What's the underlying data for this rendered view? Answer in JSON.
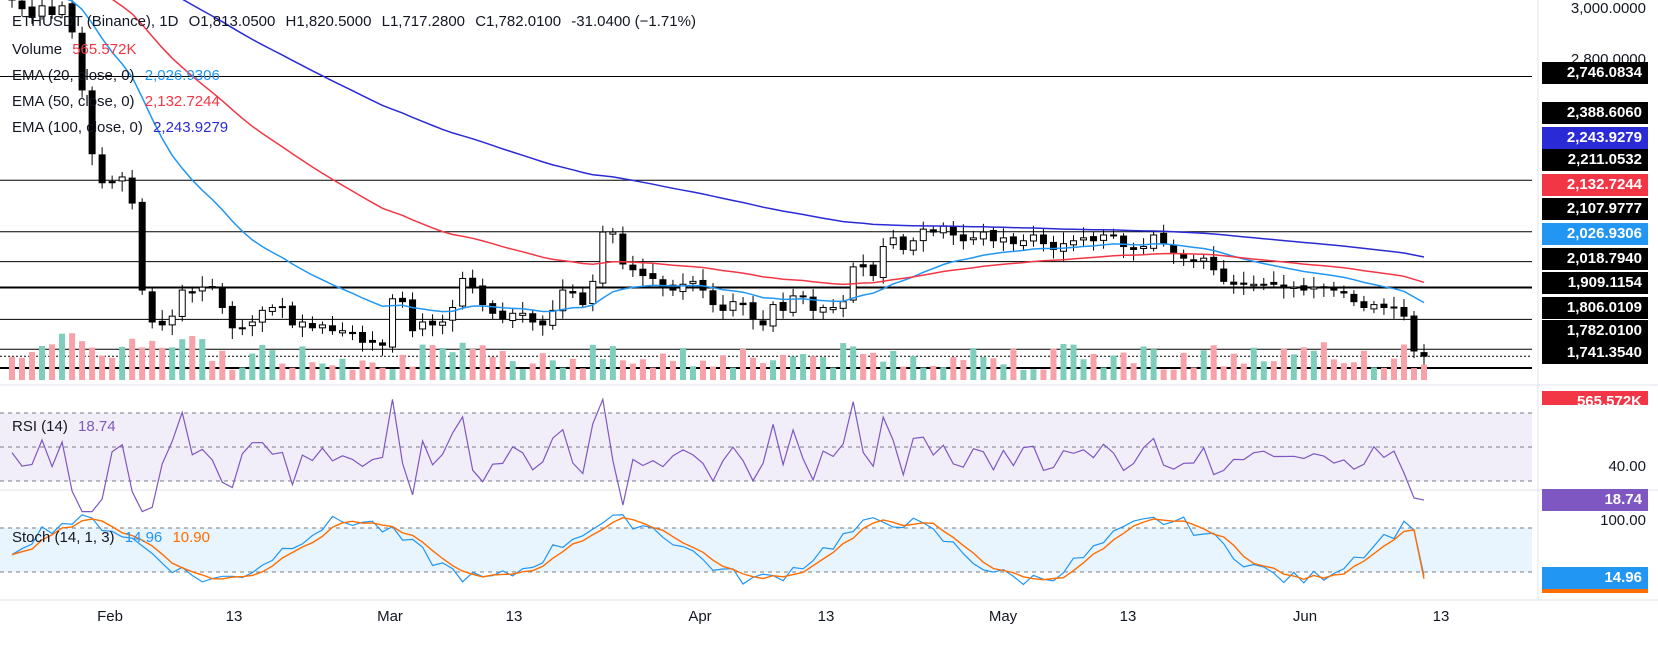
{
  "header": {
    "symbol": "ETHUSDT (Binance), 1D",
    "open": "O1,813.0500",
    "high": "H1,820.5000",
    "low": "L1,717.2800",
    "close": "C1,782.0100",
    "change": "-31.0400 (−1.71%)"
  },
  "legend": {
    "volume_label": "Volume",
    "volume_value": "565.572K",
    "ema20_label": "EMA (20, close, 0)",
    "ema20_value": "2,026.9306",
    "ema50_label": "EMA (50, close, 0)",
    "ema50_value": "2,132.7244",
    "ema100_label": "EMA (100, close, 0)",
    "ema100_value": "2,243.9279",
    "rsi_label": "RSI (14)",
    "rsi_value": "18.74",
    "stoch_label": "Stoch (14, 1, 3)",
    "stoch_k": "14.96",
    "stoch_d": "10.90"
  },
  "price_axis": {
    "top_label": "3,000.0000",
    "label_2800": "2,800.0000",
    "levels": [
      {
        "value": "2,746.0834",
        "color": "#000000"
      },
      {
        "value": "2,388.6060",
        "color": "#000000"
      },
      {
        "value": "2,243.9279",
        "color": "#2a2ad6"
      },
      {
        "value": "2,211.0532",
        "color": "#000000"
      },
      {
        "value": "2,132.7244",
        "color": "#f23645"
      },
      {
        "value": "2,107.9777",
        "color": "#000000"
      },
      {
        "value": "2,026.9306",
        "color": "#2196f3"
      },
      {
        "value": "2,018.7940",
        "color": "#000000"
      },
      {
        "value": "1,909.1154",
        "color": "#000000"
      },
      {
        "value": "1,806.0109",
        "color": "#000000"
      },
      {
        "value": "1,782.0100",
        "color": "#000000"
      },
      {
        "value": "1,741.3540",
        "color": "#000000"
      }
    ],
    "volume_badge": "565.572K",
    "rsi_axis_label": "40.00",
    "rsi_badge": "18.74",
    "stoch_axis_label": "100.00",
    "stoch_badge": "14.96"
  },
  "x_axis": {
    "labels": [
      "Feb",
      "13",
      "Mar",
      "13",
      "Apr",
      "13",
      "May",
      "13",
      "Jun",
      "13"
    ]
  },
  "colors": {
    "up": "#ffffff",
    "down": "#000000",
    "ema20": "#2196f3",
    "ema50": "#f23645",
    "ema100": "#2a2ad6",
    "vol_up": "#7fcdbb",
    "vol_down": "#f7a1a9",
    "rsi": "#7e57c2",
    "stoch_k": "#2196f3",
    "stoch_d": "#ff6d00"
  },
  "chart_data": {
    "type": "line",
    "title": "ETHUSDT (Binance), 1D",
    "x_labels": [
      "Feb",
      "13",
      "Mar",
      "13",
      "Apr",
      "13",
      "May",
      "13",
      "Jun",
      "13"
    ],
    "ylim": [
      1700,
      3000
    ],
    "horizontal_levels": [
      2746.0834,
      2388.606,
      2211.0532,
      2107.9777,
      2018.794,
      1909.1154,
      1806.0109,
      1782.01,
      1741.354
    ],
    "candles_close": [
      3010,
      2980,
      2950,
      2990,
      2960,
      2990,
      2900,
      2700,
      2480,
      2380,
      2380,
      2400,
      2310,
      2010,
      1900,
      1890,
      1920,
      2010,
      2000,
      2020,
      2020,
      1950,
      1880,
      1880,
      1900,
      1940,
      1950,
      1950,
      1890,
      1900,
      1880,
      1890,
      1870,
      1870,
      1860,
      1830,
      1830,
      1820,
      1980,
      1970,
      1870,
      1900,
      1890,
      1900,
      1950,
      2050,
      2020,
      1960,
      1930,
      1910,
      1930,
      1930,
      1900,
      1890,
      1940,
      2010,
      2000,
      1960,
      2040,
      2210,
      2210,
      2100,
      2080,
      2060,
      2050,
      2020,
      2010,
      2030,
      2040,
      2010,
      1960,
      1940,
      1970,
      1960,
      1910,
      1890,
      1960,
      1940,
      1990,
      1990,
      1940,
      1950,
      1950,
      1970,
      2090,
      2090,
      2060,
      2160,
      2190,
      2150,
      2180,
      2220,
      2210,
      2230,
      2200,
      2180,
      2190,
      2210,
      2180,
      2190,
      2170,
      2180,
      2200,
      2170,
      2150,
      2170,
      2180,
      2190,
      2180,
      2200,
      2200,
      2160,
      2150,
      2160,
      2200,
      2170,
      2140,
      2120,
      2110,
      2120,
      2080,
      2040,
      2030,
      2030,
      2030,
      2030,
      2030,
      2020,
      2020,
      2010,
      2020,
      2020,
      2010,
      2000,
      1970,
      1950,
      1960,
      1950,
      1950,
      1920,
      1800,
      1782
    ],
    "ema20_last": 2026.9306,
    "ema50_last": 2132.7244,
    "ema100_last": 2243.9279,
    "rsi_last": 18.74,
    "stoch_k_last": 14.96,
    "stoch_d_last": 10.9
  }
}
